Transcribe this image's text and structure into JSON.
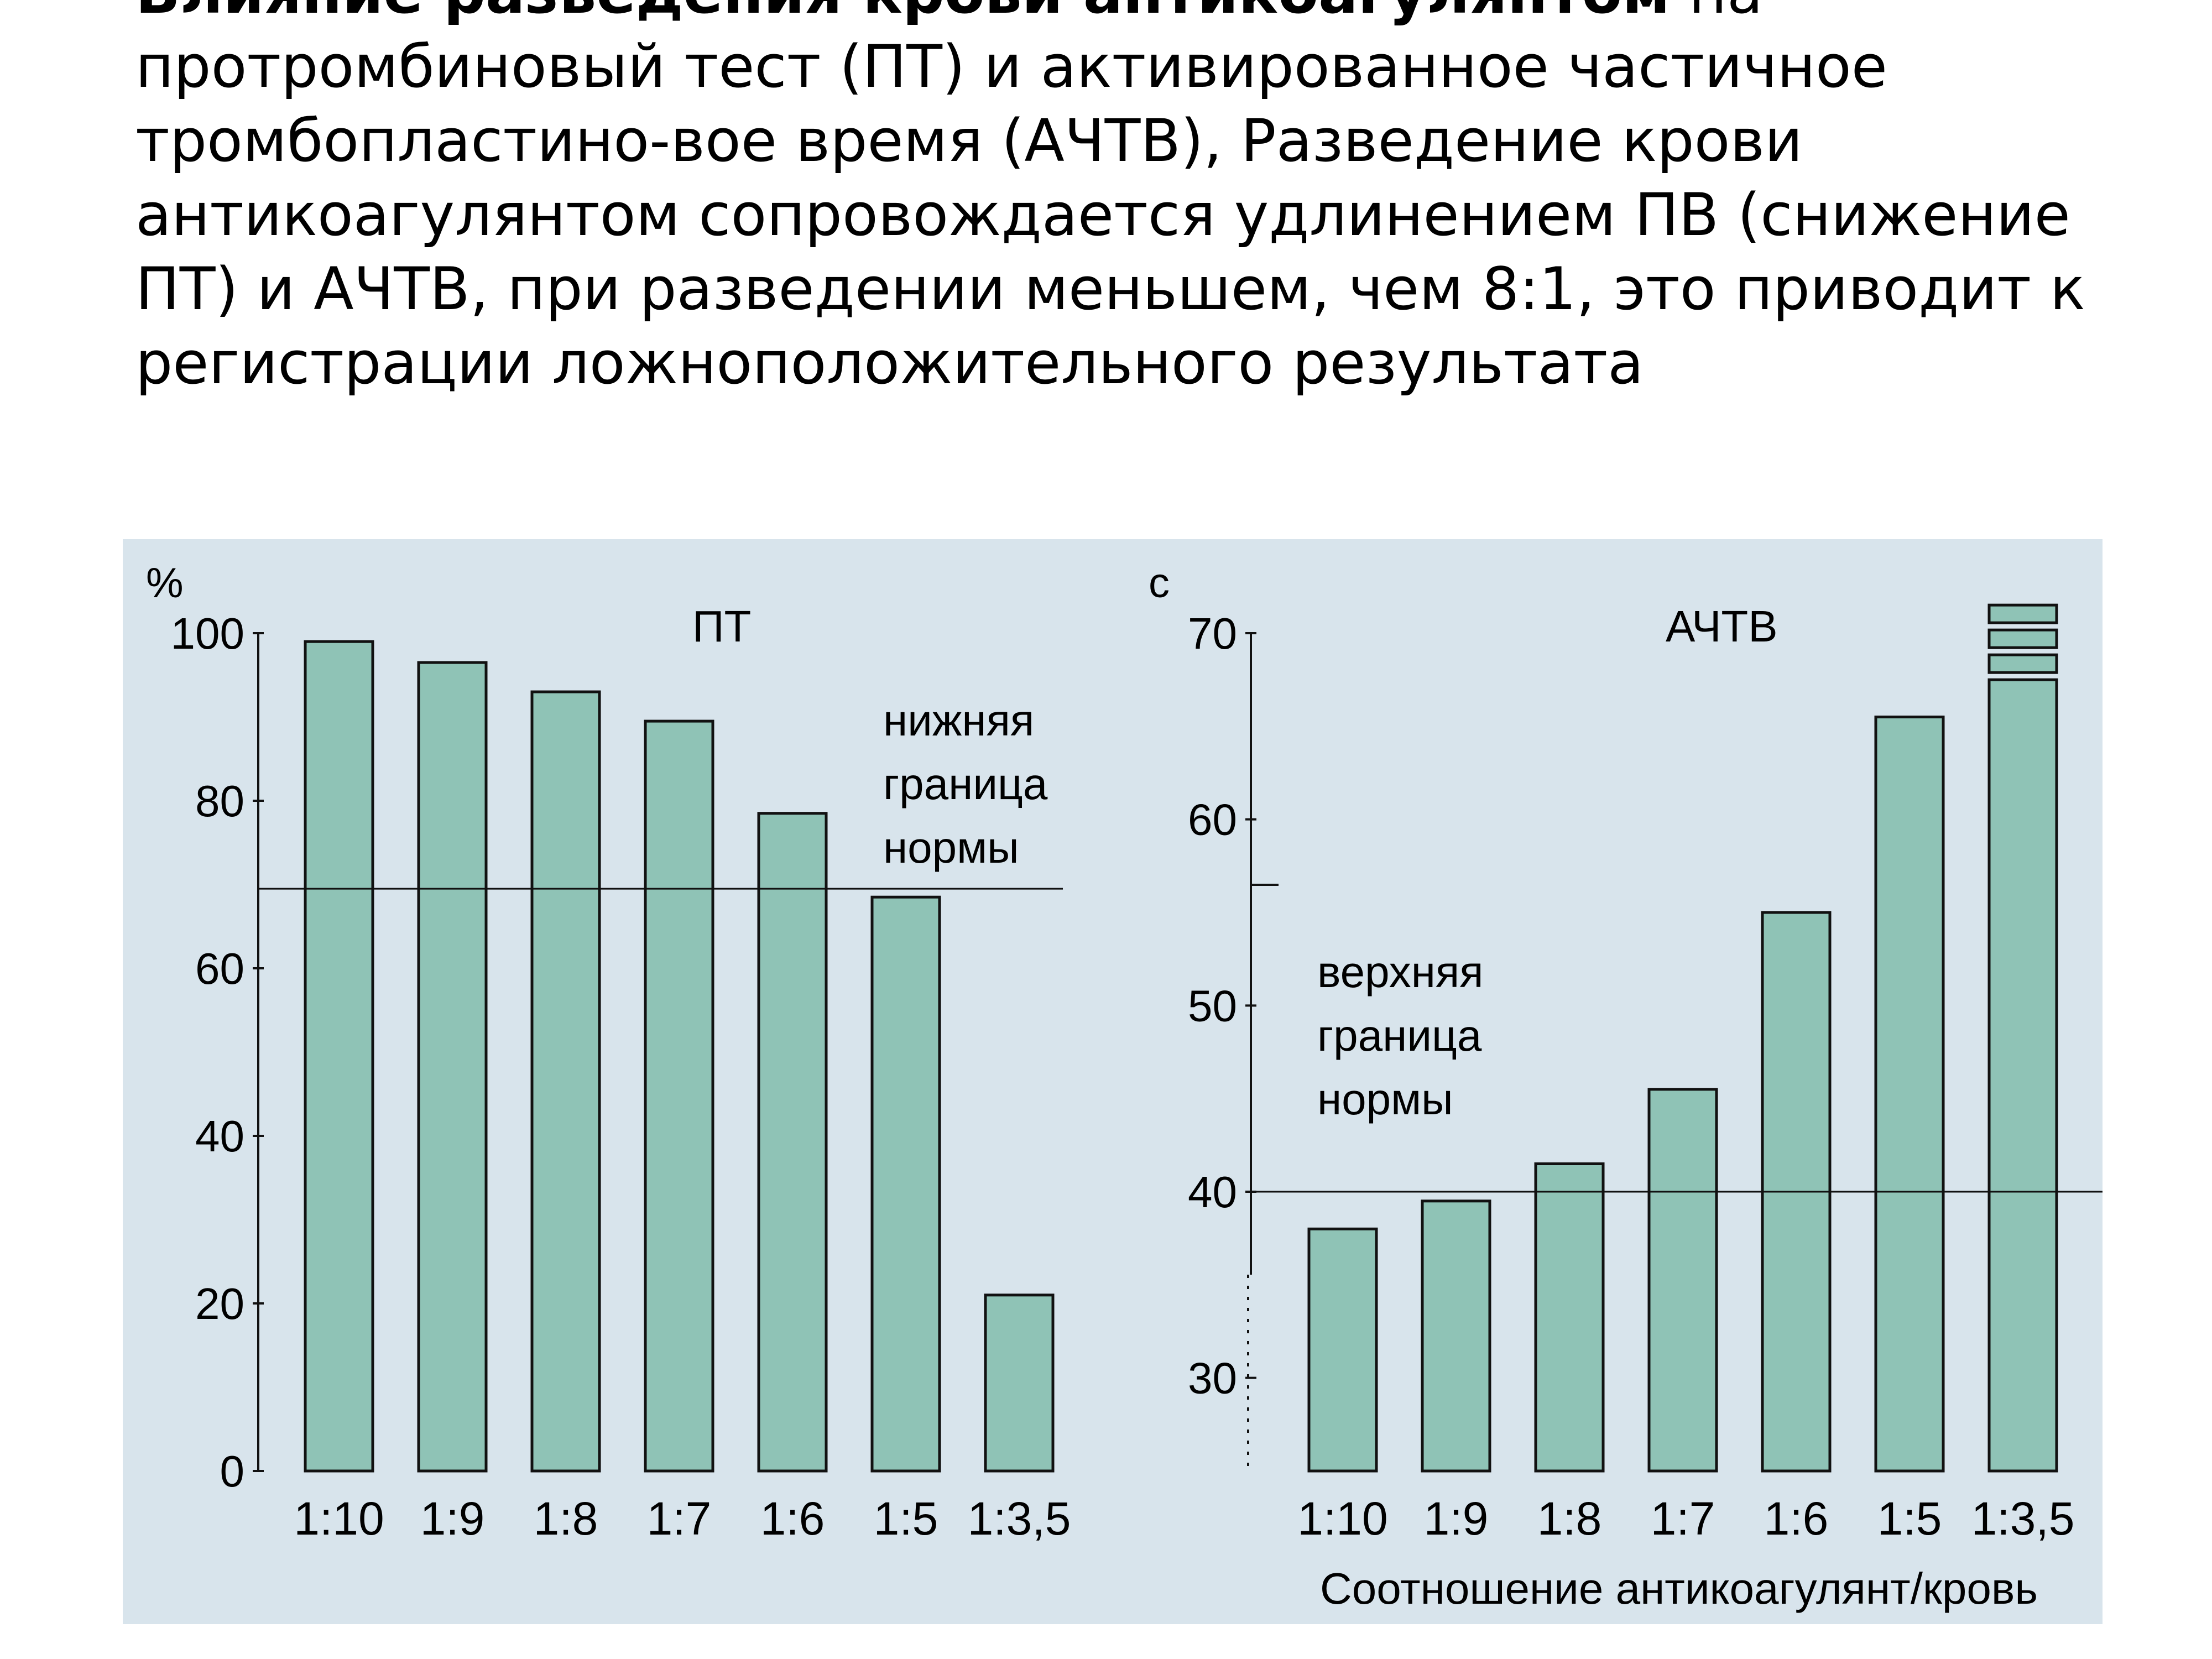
{
  "heading": {
    "bold_text": "Влияние разведения крови антикоагулянтом",
    "text": " на протромбиновый тест (ПТ) и активированное частичное тромбопластино-вое время (АЧТВ), Разведение крови антикоагулянтом сопровождается удлинением ПВ (снижение ПТ) и АЧТВ, при разведении меньшем, чем 8:1, это приводит к регистрации ложноположительного результата"
  },
  "colors": {
    "panel_bg": "#d8e4ec",
    "bar_fill": "#8fc3b6",
    "bar_stroke": "#111111",
    "text_bg_watermark": "#b9c7d1"
  },
  "chart_data": [
    {
      "type": "bar",
      "title": "ПТ",
      "ylabel": "%",
      "xlabel": "",
      "categories": [
        "1:10",
        "1:9",
        "1:8",
        "1:7",
        "1:6",
        "1:5",
        "1:3,5"
      ],
      "values": [
        99,
        96.5,
        93,
        89.5,
        78.5,
        68.5,
        21
      ],
      "ylim": [
        0,
        100
      ],
      "yticks": [
        0,
        20,
        40,
        60,
        80,
        100
      ],
      "ytick_labels": [
        "0",
        "20",
        "40",
        "60",
        "80",
        "100"
      ],
      "reference_line": {
        "value": 69.5,
        "label_lines": [
          "нижняя",
          "граница",
          "нормы"
        ]
      },
      "grid": false
    },
    {
      "type": "bar",
      "title": "АЧТВ",
      "ylabel": "с",
      "xlabel": "Соотношение антикоагулянт/кровь",
      "categories": [
        "1:10",
        "1:9",
        "1:8",
        "1:7",
        "1:6",
        "1:5",
        "1:3,5"
      ],
      "values": [
        38,
        39.5,
        41.5,
        45.5,
        55,
        65.5,
        67.5
      ],
      "ylim": [
        25,
        70
      ],
      "yticks": [
        30,
        40,
        50,
        60,
        70
      ],
      "ytick_labels": [
        "30",
        "40",
        "50",
        "60",
        "70"
      ],
      "axis_break": true,
      "off_scale_bar": "1:3,5",
      "reference_line": {
        "value": 40,
        "label_lines": [
          "верхняя",
          "граница",
          "нормы"
        ]
      },
      "grid": false
    }
  ]
}
